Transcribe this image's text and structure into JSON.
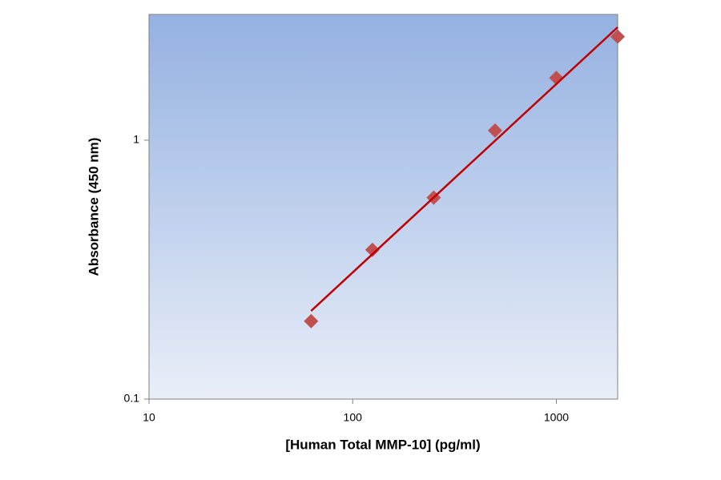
{
  "chart_data": {
    "type": "scatter",
    "x_label": "[Human Total MMP-10] (pg/ml)",
    "y_label": "Absorbance (450 nm)",
    "log_x": true,
    "log_y": true,
    "xlim": [
      10,
      2000
    ],
    "ylim": [
      0.1,
      3.06
    ],
    "xticks": [
      10,
      100,
      1000
    ],
    "yticks": [
      0.1,
      1
    ],
    "series": [
      {
        "color": "#c0504d",
        "marker": "diamond",
        "x": [
          62.5,
          125,
          250,
          500,
          1000,
          2000
        ],
        "values": [
          0.2,
          0.377,
          0.6,
          1.09,
          1.74,
          2.51
        ]
      },
      {
        "color": "#c00000",
        "marker": "line",
        "x": [
          62.5,
          2000
        ],
        "values": [
          0.219,
          2.73
        ]
      }
    ]
  }
}
